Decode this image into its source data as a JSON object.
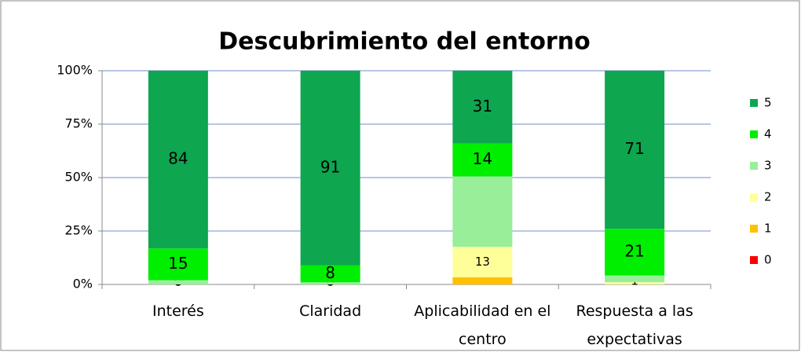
{
  "chart_data": {
    "type": "stacked_bar_percent",
    "title": "Descubrimiento del entorno",
    "categories": [
      "Interés",
      "Claridad",
      "Aplicabilidad en el centro",
      "Respuesta a las expectativas"
    ],
    "series": [
      {
        "name": "0",
        "color": "#ff0000",
        "values": [
          0,
          0,
          0,
          0
        ],
        "value_labels": [
          "0",
          "0",
          null,
          null
        ]
      },
      {
        "name": "1",
        "color": "#ffc000",
        "values": [
          0,
          0,
          3,
          0
        ],
        "value_labels": [
          null,
          null,
          null,
          null
        ]
      },
      {
        "name": "2",
        "color": "#ffff99",
        "values": [
          0,
          0,
          13,
          1
        ],
        "value_labels": [
          null,
          null,
          "13",
          "1"
        ]
      },
      {
        "name": "3",
        "color": "#99ee99",
        "values": [
          2,
          1,
          30,
          3
        ],
        "value_labels": [
          null,
          null,
          null,
          null
        ]
      },
      {
        "name": "4",
        "color": "#00ee00",
        "values": [
          15,
          8,
          14,
          21
        ],
        "value_labels": [
          "15",
          "8",
          "14",
          "21"
        ]
      },
      {
        "name": "5",
        "color": "#0ea64f",
        "values": [
          84,
          91,
          31,
          71
        ],
        "value_labels": [
          "84",
          "91",
          "31",
          "71"
        ]
      }
    ],
    "ylim": [
      0,
      100
    ],
    "yticks": [
      {
        "value": 0,
        "label": "0%"
      },
      {
        "value": 25,
        "label": "25%"
      },
      {
        "value": 50,
        "label": "50%"
      },
      {
        "value": 75,
        "label": "75%"
      },
      {
        "value": 100,
        "label": "100%"
      }
    ],
    "grid": true,
    "legend": "right"
  }
}
